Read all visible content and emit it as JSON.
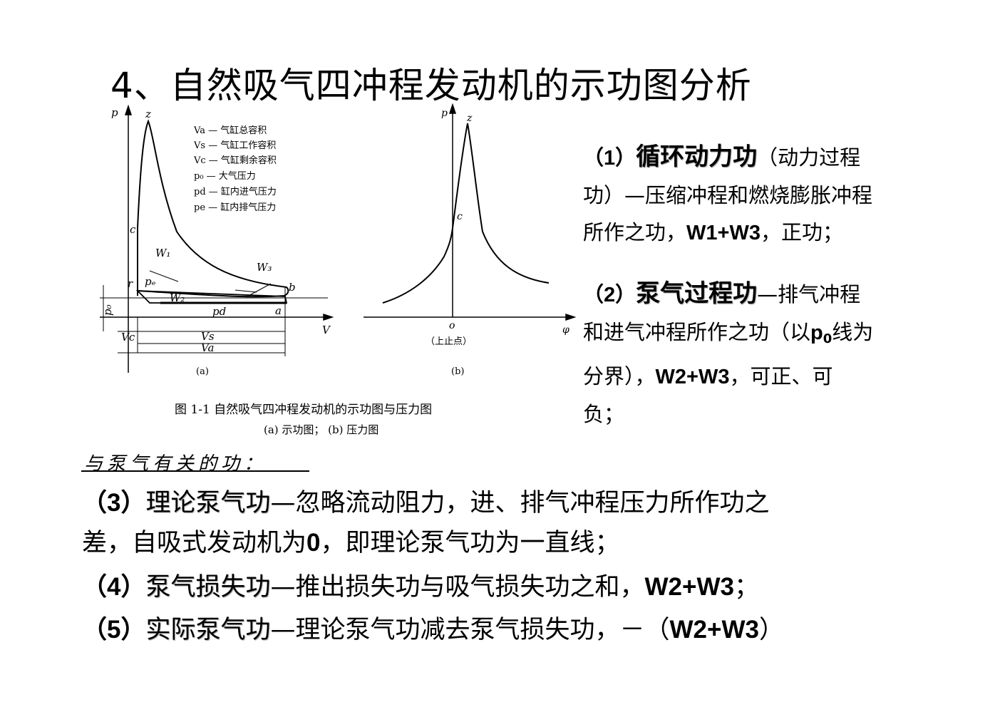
{
  "title": "4、自然吸气四冲程发动机的示功图分析",
  "figure": {
    "a": {
      "axis_p": "p",
      "axis_v": "V",
      "pt_z": "z",
      "pt_c": "c",
      "pt_r": "r",
      "pt_b": "b",
      "pt_a": "a",
      "w1": "W₁",
      "w2": "W₂",
      "w3": "W₃",
      "pe": "pₑ",
      "pd": "pd",
      "p0": "p₀",
      "vc": "Vc",
      "vs": "Vs",
      "va": "Va",
      "legend": [
        "Va — 气缸总容积",
        "Vs — 气缸工作容积",
        "Vc — 气缸剩余容积",
        "p₀ — 大气压力",
        "pd — 缸内进气压力",
        "pe — 缸内排气压力"
      ],
      "label": "(a)"
    },
    "b": {
      "axis_p": "p",
      "axis_phi": "φ",
      "pt_z": "z",
      "pt_c": "c",
      "pt_o": "o",
      "tdc": "（上止点）",
      "label": "(b)"
    },
    "caption1": "图 1-1   自然吸气四冲程发动机的示功图与压力图",
    "caption2": "(a) 示功图；  (b) 压力图"
  },
  "right": {
    "p1_num": "（1）",
    "p1_kw": "循环动力功",
    "p1_rest1": "（动力过程",
    "p1_line2": "功）—压缩冲程和燃烧膨胀冲程",
    "p1_line3a": "所作之功，",
    "p1_line3b": "W1+W3",
    "p1_line3c": "，正功；",
    "p2_num": "（2）",
    "p2_kw": "泵气过程功",
    "p2_rest1": "—排气冲程",
    "p2_line2a": "和进气冲程所作之功（以",
    "p2_line2b": "p",
    "p2_line2sub": "0",
    "p2_line2c": "线为",
    "p2_line3a": "分界），",
    "p2_line3b": "W2+W3",
    "p2_line3c": "，可正、可",
    "p2_line4": "负；"
  },
  "heading2": "与泵气有关的功：",
  "bottom": {
    "l3_num": "（3）",
    "l3_kw": "理论泵气功",
    "l3_rest": "—忽略流动阻力，进、排气冲程压力所作功之",
    "l3_line2a": "差，自吸式发动机为",
    "l3_line2b": "0",
    "l3_line2c": "，即理论泵气功为一直线；",
    "l4_num": "（4）",
    "l4_kw": "泵气损失功",
    "l4_rest": "—推出损失功与吸气损失功之和，",
    "l4_b": "W2+W3",
    "l4_end": "；",
    "l5_num": "（5）",
    "l5_kw": "实际泵气功",
    "l5_rest": "—理论泵气功减去泵气损失功，－（",
    "l5_b": "W2+W3",
    "l5_end": "）"
  }
}
